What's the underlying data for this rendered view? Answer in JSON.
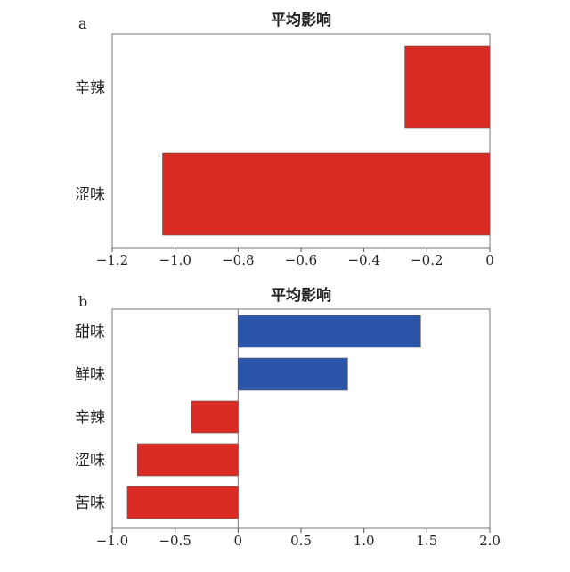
{
  "chart_data": [
    {
      "type": "bar",
      "orientation": "horizontal",
      "panel_label": "a",
      "title": "平均影响",
      "categories": [
        "辛辣",
        "涩味"
      ],
      "values": [
        -0.27,
        -1.04
      ],
      "xlim": [
        -1.2,
        0
      ],
      "xticks": [
        -1.2,
        -1.0,
        -0.8,
        -0.6,
        -0.4,
        -0.2,
        0
      ],
      "xtick_labels": [
        "−1.2",
        "−1.0",
        "−0.8",
        "−0.6",
        "−0.4",
        "−0.2",
        "0"
      ],
      "grid": false,
      "colors": {
        "negative": "#d92b24",
        "positive": "#2a55a8"
      }
    },
    {
      "type": "bar",
      "orientation": "horizontal",
      "panel_label": "b",
      "title": "平均影响",
      "categories": [
        "甜味",
        "鲜味",
        "辛辣",
        "涩味",
        "苦味"
      ],
      "values": [
        1.45,
        0.87,
        -0.37,
        -0.8,
        -0.88
      ],
      "xlim": [
        -1.0,
        2.0
      ],
      "xticks": [
        -1.0,
        -0.5,
        0,
        0.5,
        1.0,
        1.5,
        2.0
      ],
      "xtick_labels": [
        "−1.0",
        "−0.5",
        "0",
        "0.5",
        "1.0",
        "1.5",
        "2.0"
      ],
      "grid": false,
      "colors": {
        "negative": "#d92b24",
        "positive": "#2a55a8"
      }
    }
  ]
}
